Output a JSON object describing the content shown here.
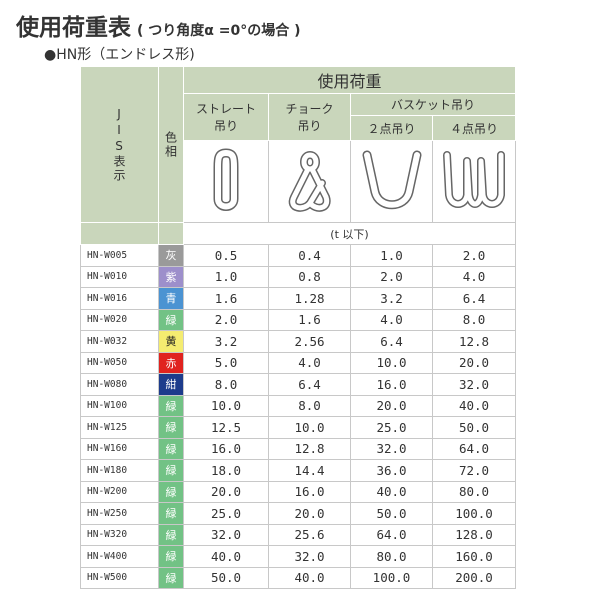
{
  "header": {
    "title": "使用荷重表",
    "subtitle": "( つり角度α =0°の場合 )",
    "section": "●HN形（エンドレス形)"
  },
  "table": {
    "col_jis": "JIS表示",
    "col_color": "色相",
    "load": "使用荷重",
    "straight": [
      "ストレート",
      "吊り"
    ],
    "choke": [
      "チョーク",
      "吊り"
    ],
    "basket": "バスケット吊り",
    "two_point": "２点吊り",
    "four_point": "４点吊り",
    "unit": "(t 以下)",
    "rows": [
      {
        "code": "HN-W005",
        "hue": "灰",
        "swatch": "#9a9a9a",
        "ink": "#fff",
        "values": [
          "0.5",
          "0.4",
          "1.0",
          "2.0"
        ]
      },
      {
        "code": "HN-W010",
        "hue": "紫",
        "swatch": "#9d8fcb",
        "ink": "#fff",
        "values": [
          "1.0",
          "0.8",
          "2.0",
          "4.0"
        ]
      },
      {
        "code": "HN-W016",
        "hue": "青",
        "swatch": "#4b93d2",
        "ink": "#fff",
        "values": [
          "1.6",
          "1.28",
          "3.2",
          "6.4"
        ]
      },
      {
        "code": "HN-W020",
        "hue": "緑",
        "swatch": "#72c285",
        "ink": "#fff",
        "values": [
          "2.0",
          "1.6",
          "4.0",
          "8.0"
        ]
      },
      {
        "code": "HN-W032",
        "hue": "黄",
        "swatch": "#f4ec70",
        "ink": "#222",
        "values": [
          "3.2",
          "2.56",
          "6.4",
          "12.8"
        ]
      },
      {
        "code": "HN-W050",
        "hue": "赤",
        "swatch": "#e0231f",
        "ink": "#fff",
        "values": [
          "5.0",
          "4.0",
          "10.0",
          "20.0"
        ]
      },
      {
        "code": "HN-W080",
        "hue": "紺",
        "swatch": "#1d3c8c",
        "ink": "#fff",
        "values": [
          "8.0",
          "6.4",
          "16.0",
          "32.0"
        ]
      },
      {
        "code": "HN-W100",
        "hue": "緑",
        "swatch": "#72c285",
        "ink": "#fff",
        "values": [
          "10.0",
          "8.0",
          "20.0",
          "40.0"
        ]
      },
      {
        "code": "HN-W125",
        "hue": "緑",
        "swatch": "#72c285",
        "ink": "#fff",
        "values": [
          "12.5",
          "10.0",
          "25.0",
          "50.0"
        ]
      },
      {
        "code": "HN-W160",
        "hue": "緑",
        "swatch": "#72c285",
        "ink": "#fff",
        "values": [
          "16.0",
          "12.8",
          "32.0",
          "64.0"
        ]
      },
      {
        "code": "HN-W180",
        "hue": "緑",
        "swatch": "#72c285",
        "ink": "#fff",
        "values": [
          "18.0",
          "14.4",
          "36.0",
          "72.0"
        ]
      },
      {
        "code": "HN-W200",
        "hue": "緑",
        "swatch": "#72c285",
        "ink": "#fff",
        "values": [
          "20.0",
          "16.0",
          "40.0",
          "80.0"
        ]
      },
      {
        "code": "HN-W250",
        "hue": "緑",
        "swatch": "#72c285",
        "ink": "#fff",
        "values": [
          "25.0",
          "20.0",
          "50.0",
          "100.0"
        ]
      },
      {
        "code": "HN-W320",
        "hue": "緑",
        "swatch": "#72c285",
        "ink": "#fff",
        "values": [
          "32.0",
          "25.6",
          "64.0",
          "128.0"
        ]
      },
      {
        "code": "HN-W400",
        "hue": "緑",
        "swatch": "#72c285",
        "ink": "#fff",
        "values": [
          "40.0",
          "32.0",
          "80.0",
          "160.0"
        ]
      },
      {
        "code": "HN-W500",
        "hue": "緑",
        "swatch": "#72c285",
        "ink": "#fff",
        "values": [
          "50.0",
          "40.0",
          "100.0",
          "200.0"
        ]
      }
    ]
  }
}
